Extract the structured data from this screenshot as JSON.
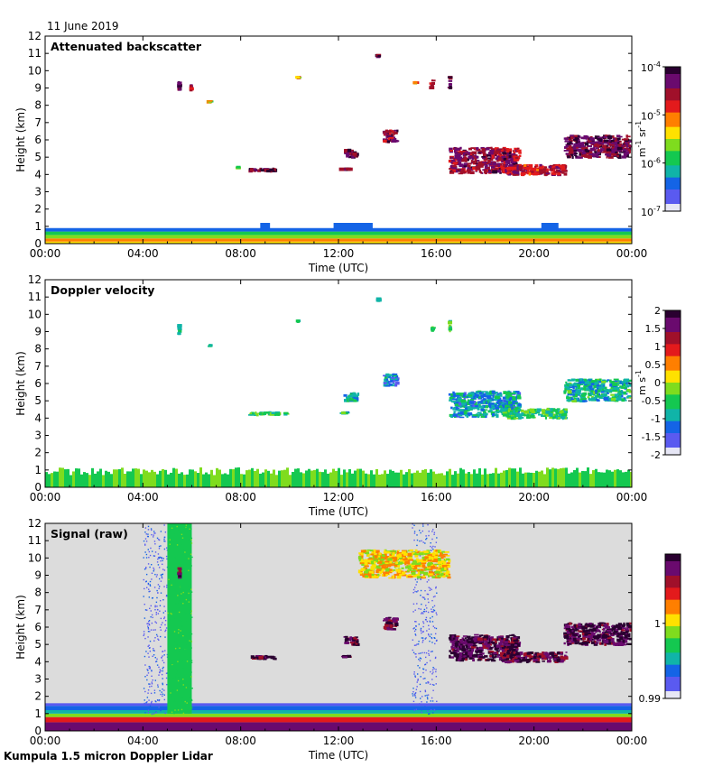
{
  "date": "11 June 2019",
  "instrument": "Kumpula 1.5 micron Doppler Lidar",
  "colors": {
    "rainbow": [
      "#2a0030",
      "#6a0a6e",
      "#a0102a",
      "#e31a1c",
      "#ff7f00",
      "#ffe100",
      "#7fdc1e",
      "#14c850",
      "#10b4a8",
      "#1464e6",
      "#5a5af0",
      "#e6e6f5"
    ],
    "plot_bg_raw": "#dcdcdc",
    "plot_bg": "#ffffff"
  },
  "chart_data": [
    {
      "type": "heatmap",
      "title": "Attenuated backscatter",
      "xlabel": "Time (UTC)",
      "ylabel": "Height (km)",
      "xlim": [
        0,
        24
      ],
      "ylim": [
        0,
        12
      ],
      "x_ticks": [
        "00:00",
        "04:00",
        "08:00",
        "12:00",
        "16:00",
        "20:00",
        "00:00"
      ],
      "y_ticks": [
        "0",
        "1",
        "2",
        "3",
        "4",
        "5",
        "6",
        "7",
        "8",
        "9",
        "10",
        "11",
        "12"
      ],
      "colorbar": {
        "ticks": [
          "10",
          "10",
          "10",
          "10"
        ],
        "exponents": [
          "-4",
          "-5",
          "-6",
          "-7"
        ],
        "label_main": "m",
        "label_exp1": "-1",
        "label_mid": " sr",
        "label_exp2": "-1"
      },
      "features": [
        {
          "t0": 0.0,
          "t1": 24.0,
          "h0": 0.0,
          "h1": 0.9,
          "level": "boundary_layer"
        },
        {
          "t0": 5.4,
          "t1": 5.6,
          "h0": 8.8,
          "h1": 9.5,
          "level": 0.9
        },
        {
          "t0": 5.9,
          "t1": 6.05,
          "h0": 8.8,
          "h1": 9.3,
          "level": 0.85
        },
        {
          "t0": 6.7,
          "t1": 6.8,
          "h0": 8.1,
          "h1": 8.3,
          "level": 0.5
        },
        {
          "t0": 8.3,
          "t1": 9.5,
          "h0": 4.1,
          "h1": 4.4,
          "level": 0.9
        },
        {
          "t0": 7.8,
          "t1": 8.0,
          "h0": 4.3,
          "h1": 4.5,
          "level": 0.4
        },
        {
          "t0": 10.3,
          "t1": 10.4,
          "h0": 9.5,
          "h1": 9.7,
          "level": 0.6
        },
        {
          "t0": 12.0,
          "t1": 12.6,
          "h0": 4.2,
          "h1": 4.4,
          "level": 0.9
        },
        {
          "t0": 12.2,
          "t1": 12.9,
          "h0": 4.9,
          "h1": 5.5,
          "level": 0.9
        },
        {
          "t0": 13.6,
          "t1": 13.7,
          "h0": 10.7,
          "h1": 11.0,
          "level": 0.9
        },
        {
          "t0": 13.8,
          "t1": 14.5,
          "h0": 5.8,
          "h1": 6.6,
          "level": 0.85
        },
        {
          "t0": 15.1,
          "t1": 15.2,
          "h0": 9.2,
          "h1": 9.4,
          "level": 0.6
        },
        {
          "t0": 15.8,
          "t1": 15.9,
          "h0": 8.9,
          "h1": 9.5,
          "level": 0.8
        },
        {
          "t0": 16.5,
          "t1": 16.65,
          "h0": 8.9,
          "h1": 9.7,
          "level": 0.9
        },
        {
          "t0": 16.5,
          "t1": 19.5,
          "h0": 4.0,
          "h1": 5.6,
          "level": 0.85
        },
        {
          "t0": 18.6,
          "t1": 21.4,
          "h0": 3.9,
          "h1": 4.6,
          "level": 0.8
        },
        {
          "t0": 21.2,
          "t1": 24.0,
          "h0": 4.9,
          "h1": 6.3,
          "level": 0.9
        }
      ]
    },
    {
      "type": "heatmap",
      "title": "Doppler velocity",
      "xlabel": "Time (UTC)",
      "ylabel": "Height (km)",
      "xlim": [
        0,
        24
      ],
      "ylim": [
        0,
        12
      ],
      "x_ticks": [
        "00:00",
        "04:00",
        "08:00",
        "12:00",
        "16:00",
        "20:00",
        "00:00"
      ],
      "y_ticks": [
        "0",
        "1",
        "2",
        "3",
        "4",
        "5",
        "6",
        "7",
        "8",
        "9",
        "10",
        "11",
        "12"
      ],
      "colorbar": {
        "ticks": [
          "2",
          "1.5",
          "1",
          "0.5",
          "0",
          "-0.5",
          "-1",
          "-1.5",
          "-2"
        ],
        "label_main": "m s",
        "label_exp1": "-1"
      },
      "features": [
        {
          "t0": 0.0,
          "t1": 24.0,
          "h0": 0.0,
          "h1": 0.9,
          "level": "boundary_layer"
        },
        {
          "t0": 5.4,
          "t1": 5.6,
          "h0": 8.8,
          "h1": 9.5,
          "level": 0.35
        },
        {
          "t0": 6.7,
          "t1": 6.8,
          "h0": 8.1,
          "h1": 8.3,
          "level": 0.3
        },
        {
          "t0": 8.3,
          "t1": 10.0,
          "h0": 4.1,
          "h1": 4.4,
          "level": 0.35
        },
        {
          "t0": 10.3,
          "t1": 10.4,
          "h0": 9.5,
          "h1": 9.7,
          "level": 0.35
        },
        {
          "t0": 12.0,
          "t1": 12.6,
          "h0": 4.2,
          "h1": 4.4,
          "level": 0.35
        },
        {
          "t0": 12.2,
          "t1": 12.9,
          "h0": 4.9,
          "h1": 5.5,
          "level": 0.3
        },
        {
          "t0": 13.6,
          "t1": 13.7,
          "h0": 10.7,
          "h1": 11.0,
          "level": 0.35
        },
        {
          "t0": 13.8,
          "t1": 14.5,
          "h0": 5.8,
          "h1": 6.6,
          "level": 0.2
        },
        {
          "t0": 15.8,
          "t1": 15.9,
          "h0": 8.9,
          "h1": 9.5,
          "level": 0.35
        },
        {
          "t0": 16.5,
          "t1": 16.65,
          "h0": 8.9,
          "h1": 9.7,
          "level": 0.35
        },
        {
          "t0": 16.5,
          "t1": 19.5,
          "h0": 4.0,
          "h1": 5.6,
          "level": 0.25
        },
        {
          "t0": 18.6,
          "t1": 21.4,
          "h0": 3.9,
          "h1": 4.6,
          "level": 0.35
        },
        {
          "t0": 21.2,
          "t1": 24.0,
          "h0": 4.9,
          "h1": 6.3,
          "level": 0.3
        }
      ]
    },
    {
      "type": "heatmap",
      "title": "Signal (raw)",
      "xlabel": "Time (UTC)",
      "ylabel": "Height (km)",
      "xlim": [
        0,
        24
      ],
      "ylim": [
        0,
        12
      ],
      "x_ticks": [
        "00:00",
        "04:00",
        "08:00",
        "12:00",
        "16:00",
        "20:00",
        "00:00"
      ],
      "y_ticks": [
        "0",
        "1",
        "2",
        "3",
        "4",
        "5",
        "6",
        "7",
        "8",
        "9",
        "10",
        "11",
        "12"
      ],
      "colorbar": {
        "ticks": [
          "1",
          "0.99"
        ]
      },
      "features": [
        {
          "t0": 0.0,
          "t1": 24.0,
          "h0": 0.0,
          "h1": 1.6,
          "level": "boundary_layer_raw"
        },
        {
          "t0": 4.0,
          "t1": 5.0,
          "h0": 1.0,
          "h1": 12.0,
          "level": "noise_blue"
        },
        {
          "t0": 5.0,
          "t1": 6.0,
          "h0": 1.0,
          "h1": 12.0,
          "level": "noise_green"
        },
        {
          "t0": 15.0,
          "t1": 16.0,
          "h0": 1.0,
          "h1": 12.0,
          "level": "noise_blue"
        },
        {
          "t0": 5.4,
          "t1": 5.6,
          "h0": 8.8,
          "h1": 9.5,
          "level": 0.9
        },
        {
          "t0": 8.3,
          "t1": 9.5,
          "h0": 4.1,
          "h1": 4.4,
          "level": 0.95
        },
        {
          "t0": 12.0,
          "t1": 12.6,
          "h0": 4.2,
          "h1": 4.4,
          "level": 0.95
        },
        {
          "t0": 12.2,
          "t1": 12.9,
          "h0": 4.9,
          "h1": 5.5,
          "level": 0.95
        },
        {
          "t0": 12.8,
          "t1": 16.6,
          "h0": 8.8,
          "h1": 10.5,
          "level": 0.55
        },
        {
          "t0": 13.8,
          "t1": 14.5,
          "h0": 5.8,
          "h1": 6.6,
          "level": 0.9
        },
        {
          "t0": 16.5,
          "t1": 19.5,
          "h0": 4.0,
          "h1": 5.6,
          "level": 0.95
        },
        {
          "t0": 18.6,
          "t1": 21.4,
          "h0": 3.9,
          "h1": 4.6,
          "level": 0.9
        },
        {
          "t0": 21.2,
          "t1": 24.0,
          "h0": 4.9,
          "h1": 6.3,
          "level": 0.95
        }
      ]
    }
  ]
}
